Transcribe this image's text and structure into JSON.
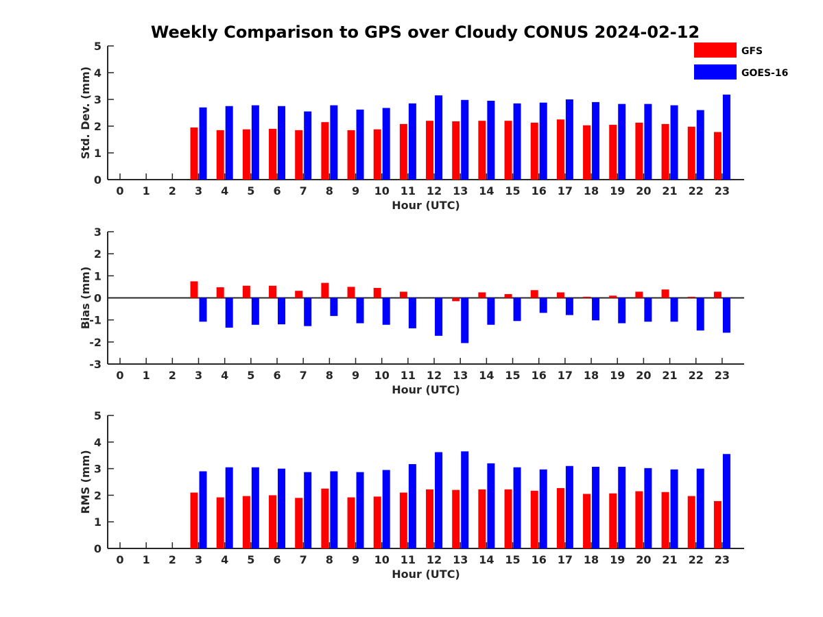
{
  "title": "Weekly Comparison to GPS over Cloudy CONUS 2024-02-12",
  "legend": [
    {
      "name": "GFS",
      "color": "#ff0000"
    },
    {
      "name": "GOES-16",
      "color": "#0000ff"
    }
  ],
  "chart_data": [
    {
      "type": "bar",
      "title": "Weekly Comparison to GPS over Cloudy CONUS 2024-02-12",
      "xlabel": "Hour (UTC)",
      "ylabel": "Std. Dev. (mm)",
      "ylim": [
        0,
        5
      ],
      "yticks": [
        0,
        1,
        2,
        3,
        4,
        5
      ],
      "categories": [
        "0",
        "1",
        "2",
        "3",
        "4",
        "5",
        "6",
        "7",
        "8",
        "9",
        "10",
        "11",
        "12",
        "13",
        "14",
        "15",
        "16",
        "17",
        "18",
        "19",
        "20",
        "21",
        "22",
        "23"
      ],
      "grid": false,
      "legend": "top-right",
      "series": [
        {
          "name": "GFS",
          "color": "#ff0000",
          "values": [
            null,
            null,
            null,
            1.95,
            1.85,
            1.88,
            1.9,
            1.85,
            2.15,
            1.85,
            1.88,
            2.08,
            2.2,
            2.18,
            2.2,
            2.2,
            2.13,
            2.25,
            2.03,
            2.05,
            2.13,
            2.08,
            1.98,
            1.78
          ]
        },
        {
          "name": "GOES-16",
          "color": "#0000ff",
          "values": [
            null,
            null,
            null,
            2.7,
            2.75,
            2.78,
            2.75,
            2.55,
            2.78,
            2.62,
            2.68,
            2.85,
            3.15,
            2.98,
            2.95,
            2.85,
            2.88,
            3.0,
            2.9,
            2.83,
            2.83,
            2.78,
            2.6,
            3.18
          ]
        }
      ]
    },
    {
      "type": "bar",
      "xlabel": "Hour (UTC)",
      "ylabel": "Bias (mm)",
      "ylim": [
        -3,
        3
      ],
      "yticks": [
        -3,
        -2,
        -1,
        0,
        1,
        2,
        3
      ],
      "categories": [
        "0",
        "1",
        "2",
        "3",
        "4",
        "5",
        "6",
        "7",
        "8",
        "9",
        "10",
        "11",
        "12",
        "13",
        "14",
        "15",
        "16",
        "17",
        "18",
        "19",
        "20",
        "21",
        "22",
        "23"
      ],
      "grid": false,
      "series": [
        {
          "name": "GFS",
          "color": "#ff0000",
          "values": [
            null,
            null,
            null,
            0.75,
            0.48,
            0.55,
            0.55,
            0.32,
            0.68,
            0.5,
            0.45,
            0.28,
            0.0,
            -0.15,
            0.25,
            0.17,
            0.35,
            0.25,
            0.05,
            0.1,
            0.28,
            0.38,
            0.05,
            0.28
          ]
        },
        {
          "name": "GOES-16",
          "color": "#0000ff",
          "values": [
            null,
            null,
            null,
            -1.08,
            -1.35,
            -1.22,
            -1.2,
            -1.28,
            -0.82,
            -1.15,
            -1.22,
            -1.38,
            -1.72,
            -2.05,
            -1.22,
            -1.05,
            -0.68,
            -0.78,
            -1.02,
            -1.15,
            -1.08,
            -1.08,
            -1.48,
            -1.58
          ]
        }
      ]
    },
    {
      "type": "bar",
      "xlabel": "Hour (UTC)",
      "ylabel": "RMS (mm)",
      "ylim": [
        0,
        5
      ],
      "yticks": [
        0,
        1,
        2,
        3,
        4,
        5
      ],
      "categories": [
        "0",
        "1",
        "2",
        "3",
        "4",
        "5",
        "6",
        "7",
        "8",
        "9",
        "10",
        "11",
        "12",
        "13",
        "14",
        "15",
        "16",
        "17",
        "18",
        "19",
        "20",
        "21",
        "22",
        "23"
      ],
      "grid": false,
      "series": [
        {
          "name": "GFS",
          "color": "#ff0000",
          "values": [
            null,
            null,
            null,
            2.1,
            1.92,
            1.97,
            2.0,
            1.9,
            2.25,
            1.92,
            1.95,
            2.1,
            2.22,
            2.2,
            2.22,
            2.22,
            2.17,
            2.27,
            2.05,
            2.07,
            2.15,
            2.12,
            1.97,
            1.78
          ]
        },
        {
          "name": "GOES-16",
          "color": "#0000ff",
          "values": [
            null,
            null,
            null,
            2.9,
            3.05,
            3.05,
            3.0,
            2.87,
            2.9,
            2.87,
            2.95,
            3.17,
            3.62,
            3.65,
            3.2,
            3.05,
            2.97,
            3.1,
            3.07,
            3.07,
            3.02,
            2.97,
            3.0,
            3.55
          ]
        }
      ]
    }
  ]
}
